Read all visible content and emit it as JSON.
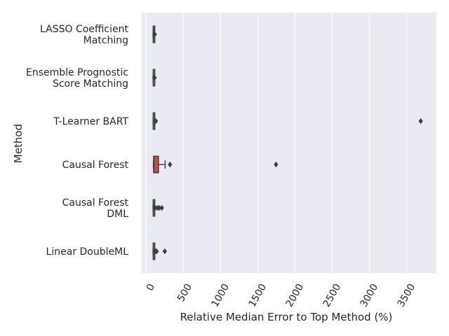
{
  "chart_data": {
    "type": "boxplot",
    "orientation": "horizontal",
    "xlabel": "Relative Median Error to Top Method (%)",
    "ylabel": "Method",
    "xlim": [
      -60,
      3900
    ],
    "xticks": [
      0,
      500,
      1000,
      1500,
      2000,
      2500,
      3000,
      3500
    ],
    "xtick_rotation_deg": -60,
    "grid": true,
    "background": "#eaeaf2",
    "grid_color": "#ffffff",
    "box_edge_color": "#3f3f3f",
    "highlight_color": "#c44e52",
    "categories": [
      {
        "label_lines": [
          "LASSO Coefficient",
          "Matching"
        ],
        "q1": 95,
        "median": 96,
        "q3": 97,
        "whisker_low": 94,
        "whisker_high": 100,
        "outliers": [
          110,
          115
        ],
        "fill": "#4c72b0"
      },
      {
        "label_lines": [
          "Ensemble Prognostic",
          "Score Matching"
        ],
        "q1": 95,
        "median": 96,
        "q3": 97,
        "whisker_low": 94,
        "whisker_high": 99,
        "outliers": [
          108,
          113
        ],
        "fill": "#dd8452"
      },
      {
        "label_lines": [
          "T-Learner BART"
        ],
        "q1": 95,
        "median": 97,
        "q3": 100,
        "whisker_low": 94,
        "whisker_high": 103,
        "outliers": [
          125,
          130,
          3690
        ],
        "fill": "#55a868"
      },
      {
        "label_lines": [
          "Causal Forest"
        ],
        "q1": 100,
        "median": 105,
        "q3": 165,
        "whisker_low": 97,
        "whisker_high": 255,
        "outliers": [
          320,
          1745
        ],
        "fill": "#c44e52"
      },
      {
        "label_lines": [
          "Causal Forest",
          "DML"
        ],
        "q1": 95,
        "median": 96,
        "q3": 97,
        "whisker_low": 94,
        "whisker_high": 102,
        "outliers": [
          110,
          120,
          150,
          175,
          210
        ],
        "fill": "#8172b3"
      },
      {
        "label_lines": [
          "Linear DoubleML"
        ],
        "q1": 95,
        "median": 96,
        "q3": 98,
        "whisker_low": 94,
        "whisker_high": 104,
        "outliers": [
          112,
          125,
          140,
          250
        ],
        "fill": "#937860"
      }
    ]
  }
}
